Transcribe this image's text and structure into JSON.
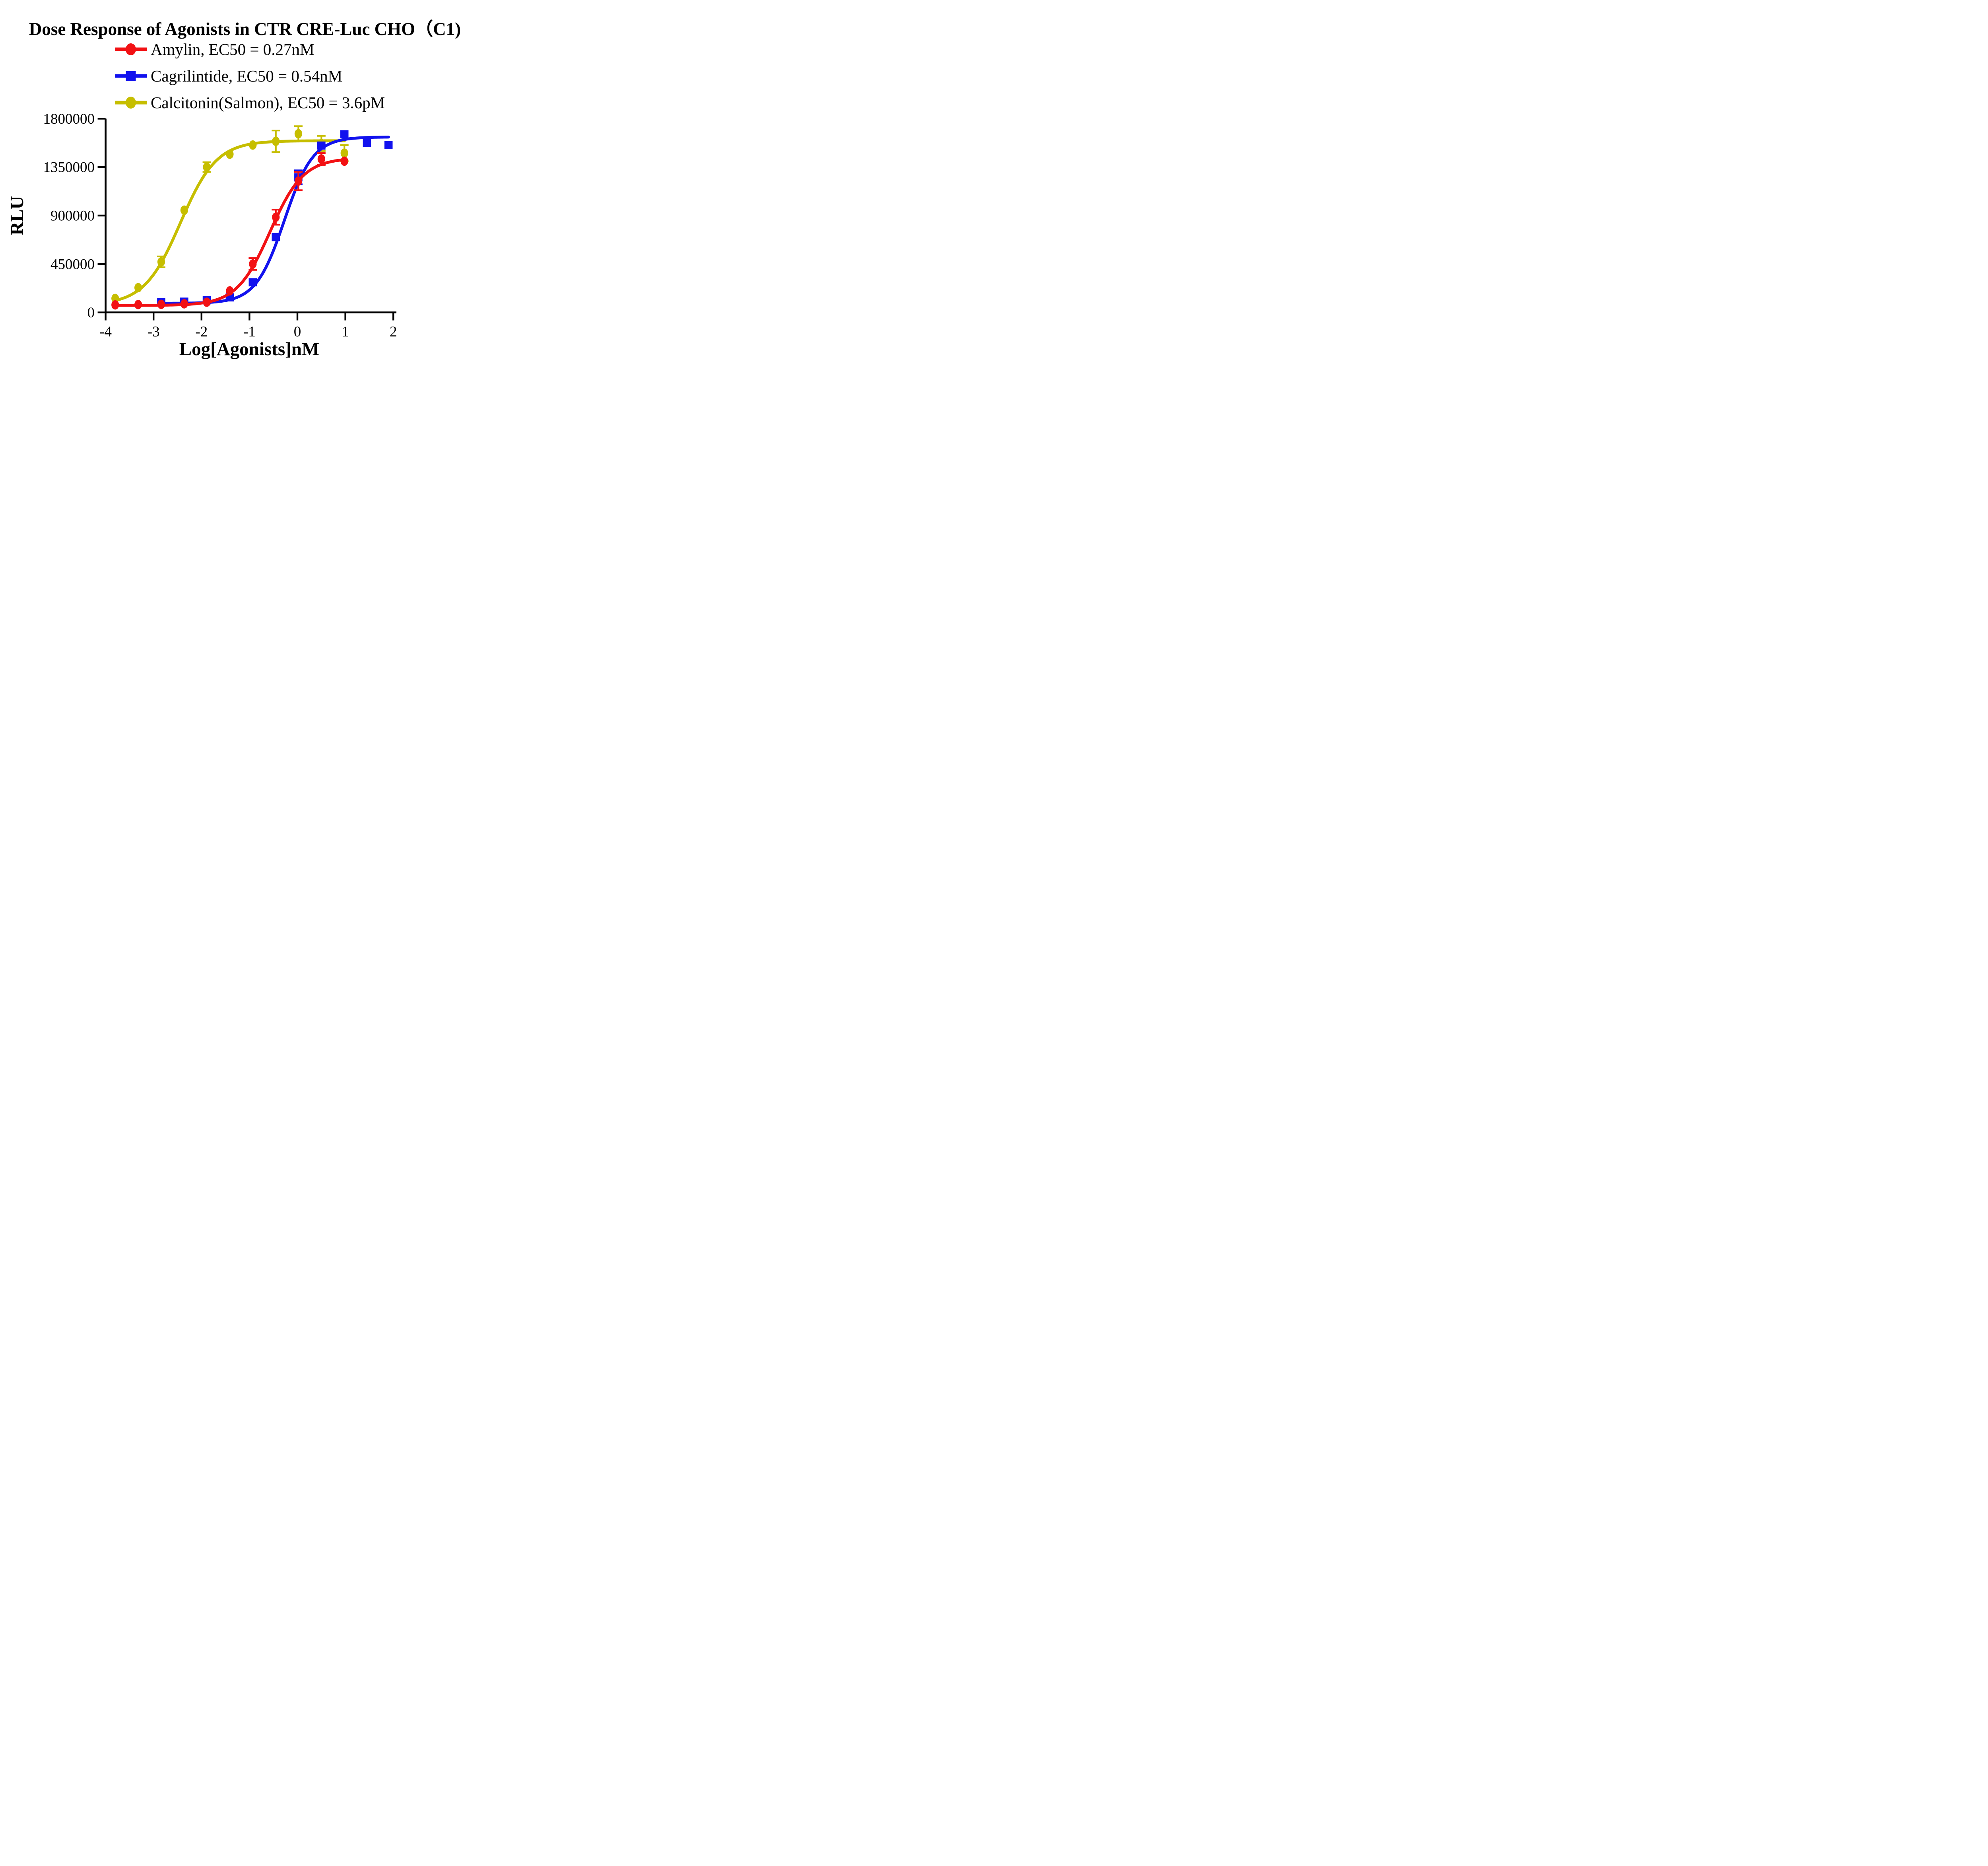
{
  "title": "Dose Response of Agonists in CTR CRE-Luc CHO（C1)",
  "chart_data": {
    "type": "scatter",
    "title": "Dose Response of Agonists in CTR CRE-Luc CHO（C1)",
    "xlabel": "Log[Agonists]nM",
    "ylabel": "RLU",
    "xlim": [
      -4,
      2
    ],
    "ylim": [
      0,
      1800000
    ],
    "grid": false,
    "legend_position": "top-left above plot",
    "x_ticks": [
      -4,
      -3,
      -2,
      -1,
      0,
      1,
      2
    ],
    "x_tick_labels": [
      "-4",
      "-3",
      "-2",
      "-1",
      "0",
      "1",
      "2"
    ],
    "y_ticks": [
      0,
      450000,
      900000,
      1350000,
      1800000
    ],
    "y_tick_labels": [
      "0",
      "450000",
      "900000",
      "1350000",
      "1800000"
    ],
    "series": [
      {
        "name": "Amylin",
        "legend_label": "Amylin, EC50 = 0.27nM",
        "ec50": "0.27nM",
        "color": "#f21114",
        "marker": "circle",
        "x": [
          -3.8,
          -3.32,
          -2.84,
          -2.36,
          -1.89,
          -1.41,
          -0.93,
          -0.45,
          0.02,
          0.5,
          0.98
        ],
        "y": [
          70000,
          73000,
          75000,
          80000,
          95000,
          200000,
          450000,
          885000,
          1220000,
          1425000,
          1405000
        ],
        "err": [
          0,
          0,
          0,
          0,
          0,
          0,
          55000,
          70000,
          85000,
          55000,
          0
        ],
        "fit": {
          "bottom": 65000,
          "top": 1435000,
          "logEC50": -0.57,
          "hill": 1.25
        }
      },
      {
        "name": "Cagrilintide",
        "legend_label": "Cagrilintide, EC50 = 0.54nM",
        "ec50": "0.54nM",
        "color": "#1212ee",
        "marker": "square",
        "x": [
          -2.84,
          -2.36,
          -1.89,
          -1.41,
          -0.93,
          -0.45,
          0.02,
          0.5,
          0.98,
          1.45,
          1.9
        ],
        "y": [
          95000,
          100000,
          113000,
          140000,
          280000,
          700000,
          1255000,
          1550000,
          1655000,
          1575000,
          1555000
        ],
        "err": [
          0,
          0,
          0,
          0,
          0,
          0,
          65000,
          0,
          0,
          0,
          0
        ],
        "fit": {
          "bottom": 85000,
          "top": 1630000,
          "logEC50": -0.27,
          "hill": 1.45
        }
      },
      {
        "name": "Calcitonin(Salmon)",
        "legend_label": "Calcitonin(Salmon),  EC50 = 3.6pM",
        "ec50": "3.6pM",
        "color": "#c6be00",
        "marker": "circle",
        "x": [
          -3.8,
          -3.32,
          -2.84,
          -2.36,
          -1.89,
          -1.41,
          -0.93,
          -0.45,
          0.02,
          0.5,
          0.98
        ],
        "y": [
          130000,
          230000,
          470000,
          950000,
          1350000,
          1470000,
          1555000,
          1590000,
          1660000,
          1570000,
          1480000
        ],
        "err": [
          0,
          0,
          50000,
          0,
          45000,
          0,
          0,
          100000,
          70000,
          70000,
          75000
        ],
        "fit": {
          "bottom": 70000,
          "top": 1595000,
          "logEC50": -2.44,
          "hill": 1.15
        }
      }
    ]
  },
  "colors": {
    "background": "#ffffff",
    "axis": "#000000",
    "amylin_red": "#f21114",
    "cagrilintide_blue": "#1212ee",
    "calcitonin_yellow": "#c6be00"
  }
}
